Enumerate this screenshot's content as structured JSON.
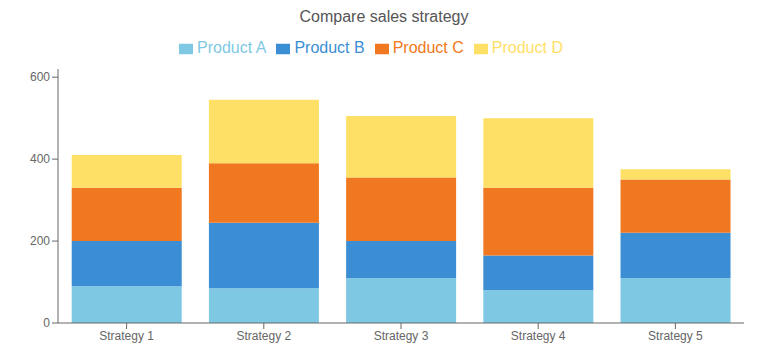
{
  "chart_data": {
    "type": "bar",
    "title": "Compare sales strategy",
    "categories": [
      "Strategy 1",
      "Strategy 2",
      "Strategy 3",
      "Strategy 4",
      "Strategy 5"
    ],
    "series": [
      {
        "name": "Product A",
        "color": "#7EC8E3",
        "values": [
          90,
          85,
          110,
          80,
          110
        ]
      },
      {
        "name": "Product B",
        "color": "#3B8ED4",
        "values": [
          110,
          160,
          90,
          85,
          110
        ]
      },
      {
        "name": "Product C",
        "color": "#F07820",
        "values": [
          130,
          145,
          155,
          165,
          130
        ]
      },
      {
        "name": "Product D",
        "color": "#FFE066",
        "values": [
          80,
          155,
          150,
          170,
          25
        ]
      }
    ],
    "ylim": [
      0,
      620
    ],
    "yticks": [
      0,
      200,
      400,
      600
    ],
    "stacked": true,
    "grid": false,
    "legend": "top"
  }
}
